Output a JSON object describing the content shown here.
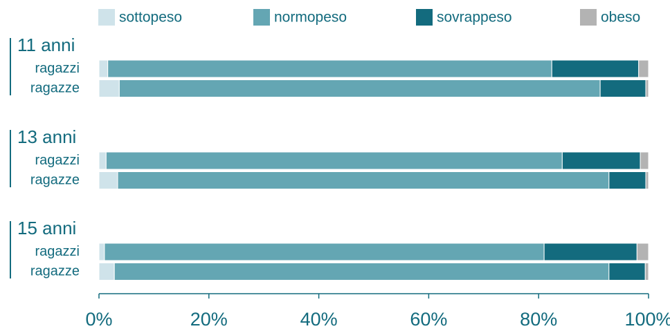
{
  "chart_data": {
    "type": "stacked-bar-horizontal",
    "groups": [
      "11 anni",
      "13 anni",
      "15 anni"
    ],
    "categories": [
      "ragazzi",
      "ragazze",
      "ragazzi",
      "ragazze",
      "ragazzi",
      "ragazze"
    ],
    "series": [
      {
        "name": "sottopeso",
        "color": "#cfe3ea",
        "values": [
          1.6,
          3.7,
          1.3,
          3.4,
          1.0,
          2.8
        ]
      },
      {
        "name": "normopeso",
        "color": "#64a6b3",
        "values": [
          80.8,
          87.5,
          83.0,
          89.4,
          80.0,
          90.0
        ]
      },
      {
        "name": "sovrappeso",
        "color": "#136b7e",
        "values": [
          15.8,
          8.3,
          14.2,
          6.7,
          16.9,
          6.6
        ]
      },
      {
        "name": "obeso",
        "color": "#b3b3b3",
        "values": [
          1.8,
          0.5,
          1.5,
          0.5,
          2.1,
          0.6
        ]
      }
    ],
    "xlim": [
      0,
      100
    ],
    "xticks": [
      {
        "value": 0,
        "label": "0%"
      },
      {
        "value": 20,
        "label": "20%"
      },
      {
        "value": 40,
        "label": "40%"
      },
      {
        "value": 60,
        "label": "60%"
      },
      {
        "value": 80,
        "label": "80%"
      },
      {
        "value": 100,
        "label": "100%"
      }
    ]
  }
}
